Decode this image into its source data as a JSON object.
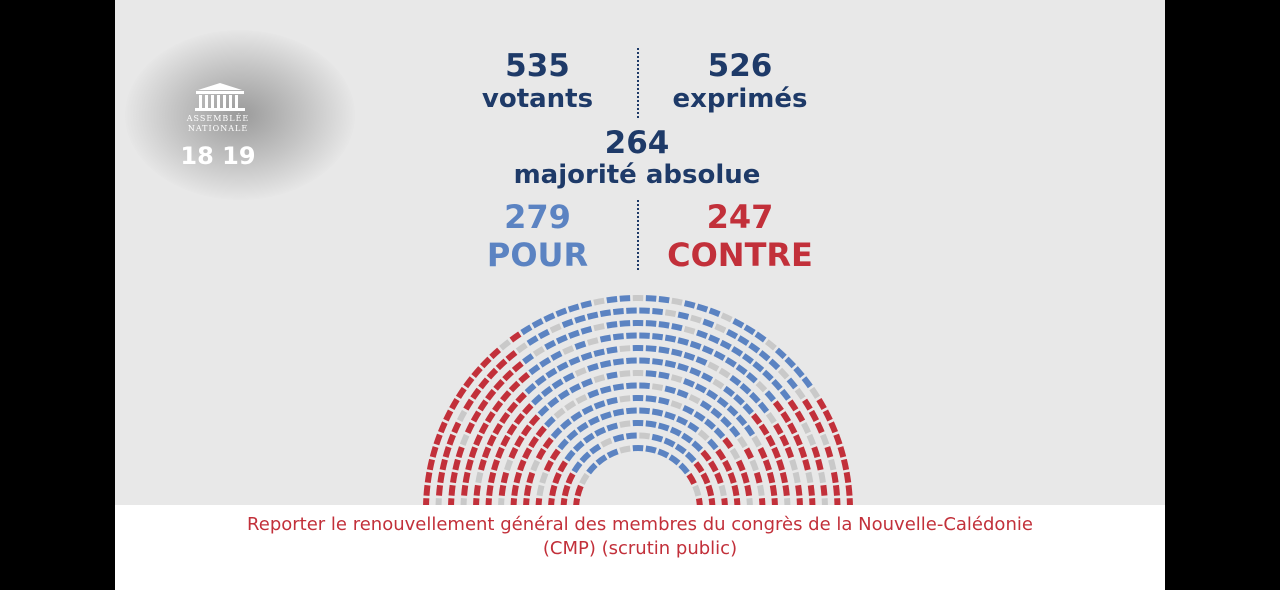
{
  "logo": {
    "line1": "ASSEMBLÉE",
    "line2": "NATIONALE"
  },
  "clock": "18 19",
  "votants": {
    "value": 535,
    "label": "votants"
  },
  "exprimes": {
    "value": 526,
    "label": "exprimés"
  },
  "majorite": {
    "value": 264,
    "label": "majorité absolue"
  },
  "pour": {
    "value": 279,
    "label": "POUR"
  },
  "contre": {
    "value": 247,
    "label": "CONTRE"
  },
  "caption": {
    "line1": "Reporter le renouvellement général des membres du congrès de la Nouvelle-Calédonie",
    "line2": "(CMP) (scrutin public)"
  }
}
